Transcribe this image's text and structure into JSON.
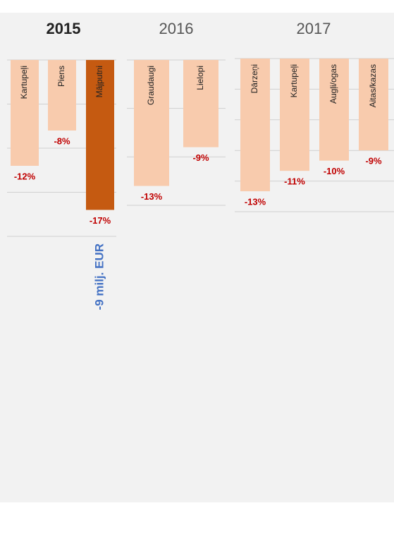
{
  "chart_data": [
    {
      "type": "bar",
      "title": "2015",
      "categories": [
        "Kartupeļi",
        "Piens",
        "Mājputni"
      ],
      "values": [
        -12,
        -8,
        -17
      ],
      "value_labels": [
        "-12%",
        "-8%",
        "-17%"
      ],
      "colors": [
        "#f8cbad",
        "#f8cbad",
        "#c55a11"
      ],
      "ylim": [
        -20,
        0
      ],
      "yticks": [
        0,
        -5,
        -10,
        -15,
        -20
      ],
      "grid": true,
      "annotation": "-9 milj. EUR"
    },
    {
      "type": "bar",
      "title": "2016",
      "categories": [
        "Graudaugi",
        "Lielopi"
      ],
      "values": [
        -13,
        -9
      ],
      "value_labels": [
        "-13%",
        "-9%"
      ],
      "colors": [
        "#f8cbad",
        "#f8cbad"
      ],
      "ylim": [
        -15,
        0
      ],
      "yticks": [
        0,
        -5,
        -10,
        -15
      ],
      "grid": true
    },
    {
      "type": "bar",
      "title": "2017",
      "categories": [
        "Dārzeņi",
        "Kartupeļi",
        "Augļi/ogas",
        "Aitas/kazas"
      ],
      "values": [
        -13,
        -11,
        -10,
        -9
      ],
      "value_labels": [
        "-13%",
        "-11%",
        "-10%",
        "-9%"
      ],
      "colors": [
        "#f8cbad",
        "#f8cbad",
        "#f8cbad",
        "#f8cbad"
      ],
      "ylim": [
        -15,
        0
      ],
      "yticks": [
        0,
        -3,
        -6,
        -9,
        -12,
        -15
      ],
      "grid": true
    }
  ]
}
